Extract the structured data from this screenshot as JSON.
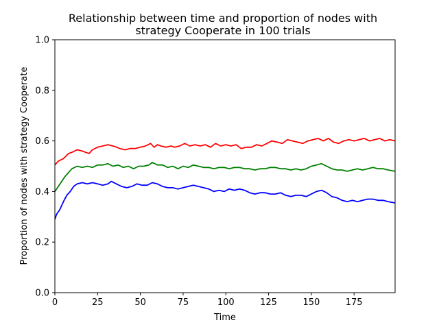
{
  "chart_data": {
    "type": "line",
    "title": [
      "Relationship between time and proportion of nodes with",
      "strategy Cooperate in 100 trials"
    ],
    "xlabel": "Time",
    "ylabel": "Proportion of nodes with strategy Cooperate",
    "xlim": [
      0,
      199
    ],
    "ylim": [
      0.0,
      1.0
    ],
    "xticks": [
      0,
      25,
      50,
      75,
      100,
      125,
      150,
      175
    ],
    "xtick_labels": [
      "0",
      "25",
      "50",
      "75",
      "100",
      "125",
      "150",
      "175"
    ],
    "yticks": [
      0.0,
      0.2,
      0.4,
      0.6,
      0.8,
      1.0
    ],
    "ytick_labels": [
      "0.0",
      "0.2",
      "0.4",
      "0.6",
      "0.8",
      "1.0"
    ],
    "grid": false,
    "legend": false,
    "series": [
      {
        "color": "#ff0000",
        "points": [
          [
            0,
            0.505
          ],
          [
            2,
            0.52
          ],
          [
            5,
            0.53
          ],
          [
            8,
            0.55
          ],
          [
            10,
            0.555
          ],
          [
            13,
            0.565
          ],
          [
            16,
            0.56
          ],
          [
            18,
            0.555
          ],
          [
            20,
            0.55
          ],
          [
            22,
            0.565
          ],
          [
            25,
            0.575
          ],
          [
            28,
            0.58
          ],
          [
            31,
            0.585
          ],
          [
            35,
            0.578
          ],
          [
            38,
            0.57
          ],
          [
            41,
            0.565
          ],
          [
            44,
            0.57
          ],
          [
            47,
            0.57
          ],
          [
            50,
            0.575
          ],
          [
            53,
            0.58
          ],
          [
            56,
            0.59
          ],
          [
            58,
            0.575
          ],
          [
            60,
            0.585
          ],
          [
            62,
            0.58
          ],
          [
            65,
            0.575
          ],
          [
            68,
            0.58
          ],
          [
            70,
            0.575
          ],
          [
            73,
            0.58
          ],
          [
            76,
            0.59
          ],
          [
            79,
            0.58
          ],
          [
            82,
            0.585
          ],
          [
            85,
            0.58
          ],
          [
            88,
            0.585
          ],
          [
            91,
            0.575
          ],
          [
            94,
            0.59
          ],
          [
            97,
            0.58
          ],
          [
            100,
            0.585
          ],
          [
            103,
            0.58
          ],
          [
            106,
            0.585
          ],
          [
            109,
            0.57
          ],
          [
            112,
            0.575
          ],
          [
            115,
            0.575
          ],
          [
            118,
            0.585
          ],
          [
            121,
            0.58
          ],
          [
            124,
            0.59
          ],
          [
            127,
            0.6
          ],
          [
            130,
            0.595
          ],
          [
            133,
            0.59
          ],
          [
            136,
            0.605
          ],
          [
            139,
            0.6
          ],
          [
            142,
            0.595
          ],
          [
            145,
            0.59
          ],
          [
            148,
            0.6
          ],
          [
            151,
            0.605
          ],
          [
            154,
            0.61
          ],
          [
            157,
            0.6
          ],
          [
            160,
            0.61
          ],
          [
            163,
            0.595
          ],
          [
            166,
            0.59
          ],
          [
            169,
            0.6
          ],
          [
            172,
            0.605
          ],
          [
            175,
            0.6
          ],
          [
            178,
            0.605
          ],
          [
            181,
            0.61
          ],
          [
            184,
            0.6
          ],
          [
            187,
            0.605
          ],
          [
            190,
            0.61
          ],
          [
            193,
            0.6
          ],
          [
            196,
            0.605
          ],
          [
            199,
            0.6
          ]
        ]
      },
      {
        "color": "#008000",
        "points": [
          [
            0,
            0.4
          ],
          [
            2,
            0.42
          ],
          [
            4,
            0.44
          ],
          [
            6,
            0.46
          ],
          [
            8,
            0.475
          ],
          [
            10,
            0.49
          ],
          [
            13,
            0.5
          ],
          [
            16,
            0.495
          ],
          [
            19,
            0.5
          ],
          [
            22,
            0.495
          ],
          [
            25,
            0.505
          ],
          [
            28,
            0.505
          ],
          [
            31,
            0.51
          ],
          [
            34,
            0.5
          ],
          [
            37,
            0.505
          ],
          [
            40,
            0.495
          ],
          [
            43,
            0.5
          ],
          [
            46,
            0.49
          ],
          [
            49,
            0.5
          ],
          [
            52,
            0.5
          ],
          [
            55,
            0.505
          ],
          [
            57,
            0.515
          ],
          [
            60,
            0.505
          ],
          [
            63,
            0.505
          ],
          [
            66,
            0.495
          ],
          [
            69,
            0.5
          ],
          [
            72,
            0.49
          ],
          [
            75,
            0.5
          ],
          [
            78,
            0.495
          ],
          [
            81,
            0.505
          ],
          [
            84,
            0.5
          ],
          [
            87,
            0.495
          ],
          [
            90,
            0.495
          ],
          [
            93,
            0.49
          ],
          [
            96,
            0.495
          ],
          [
            99,
            0.495
          ],
          [
            102,
            0.49
          ],
          [
            105,
            0.495
          ],
          [
            108,
            0.495
          ],
          [
            111,
            0.49
          ],
          [
            114,
            0.49
          ],
          [
            117,
            0.485
          ],
          [
            120,
            0.49
          ],
          [
            123,
            0.49
          ],
          [
            126,
            0.495
          ],
          [
            129,
            0.495
          ],
          [
            132,
            0.49
          ],
          [
            135,
            0.49
          ],
          [
            138,
            0.485
          ],
          [
            141,
            0.49
          ],
          [
            144,
            0.485
          ],
          [
            147,
            0.49
          ],
          [
            150,
            0.5
          ],
          [
            153,
            0.505
          ],
          [
            156,
            0.51
          ],
          [
            159,
            0.5
          ],
          [
            162,
            0.49
          ],
          [
            165,
            0.485
          ],
          [
            168,
            0.485
          ],
          [
            171,
            0.48
          ],
          [
            174,
            0.485
          ],
          [
            177,
            0.49
          ],
          [
            180,
            0.485
          ],
          [
            183,
            0.49
          ],
          [
            186,
            0.495
          ],
          [
            189,
            0.49
          ],
          [
            192,
            0.49
          ],
          [
            195,
            0.485
          ],
          [
            199,
            0.48
          ]
        ]
      },
      {
        "color": "#0000ff",
        "points": [
          [
            0,
            0.29
          ],
          [
            1,
            0.31
          ],
          [
            3,
            0.33
          ],
          [
            5,
            0.36
          ],
          [
            7,
            0.385
          ],
          [
            9,
            0.4
          ],
          [
            11,
            0.42
          ],
          [
            13,
            0.43
          ],
          [
            16,
            0.435
          ],
          [
            19,
            0.43
          ],
          [
            22,
            0.435
          ],
          [
            25,
            0.43
          ],
          [
            28,
            0.425
          ],
          [
            31,
            0.43
          ],
          [
            33,
            0.44
          ],
          [
            36,
            0.43
          ],
          [
            39,
            0.42
          ],
          [
            42,
            0.415
          ],
          [
            45,
            0.42
          ],
          [
            48,
            0.43
          ],
          [
            51,
            0.425
          ],
          [
            54,
            0.425
          ],
          [
            57,
            0.435
          ],
          [
            60,
            0.43
          ],
          [
            63,
            0.42
          ],
          [
            66,
            0.415
          ],
          [
            69,
            0.415
          ],
          [
            72,
            0.41
          ],
          [
            75,
            0.415
          ],
          [
            78,
            0.42
          ],
          [
            81,
            0.425
          ],
          [
            84,
            0.42
          ],
          [
            87,
            0.415
          ],
          [
            90,
            0.41
          ],
          [
            93,
            0.4
          ],
          [
            96,
            0.405
          ],
          [
            99,
            0.4
          ],
          [
            102,
            0.41
          ],
          [
            105,
            0.405
          ],
          [
            108,
            0.41
          ],
          [
            111,
            0.405
          ],
          [
            114,
            0.395
          ],
          [
            117,
            0.39
          ],
          [
            120,
            0.395
          ],
          [
            123,
            0.395
          ],
          [
            126,
            0.39
          ],
          [
            129,
            0.39
          ],
          [
            132,
            0.395
          ],
          [
            135,
            0.385
          ],
          [
            138,
            0.38
          ],
          [
            141,
            0.385
          ],
          [
            144,
            0.385
          ],
          [
            147,
            0.38
          ],
          [
            150,
            0.39
          ],
          [
            153,
            0.4
          ],
          [
            156,
            0.405
          ],
          [
            159,
            0.395
          ],
          [
            162,
            0.38
          ],
          [
            165,
            0.375
          ],
          [
            168,
            0.365
          ],
          [
            171,
            0.36
          ],
          [
            174,
            0.365
          ],
          [
            177,
            0.36
          ],
          [
            180,
            0.365
          ],
          [
            183,
            0.37
          ],
          [
            186,
            0.37
          ],
          [
            189,
            0.365
          ],
          [
            192,
            0.365
          ],
          [
            195,
            0.36
          ],
          [
            199,
            0.355
          ]
        ]
      }
    ]
  }
}
